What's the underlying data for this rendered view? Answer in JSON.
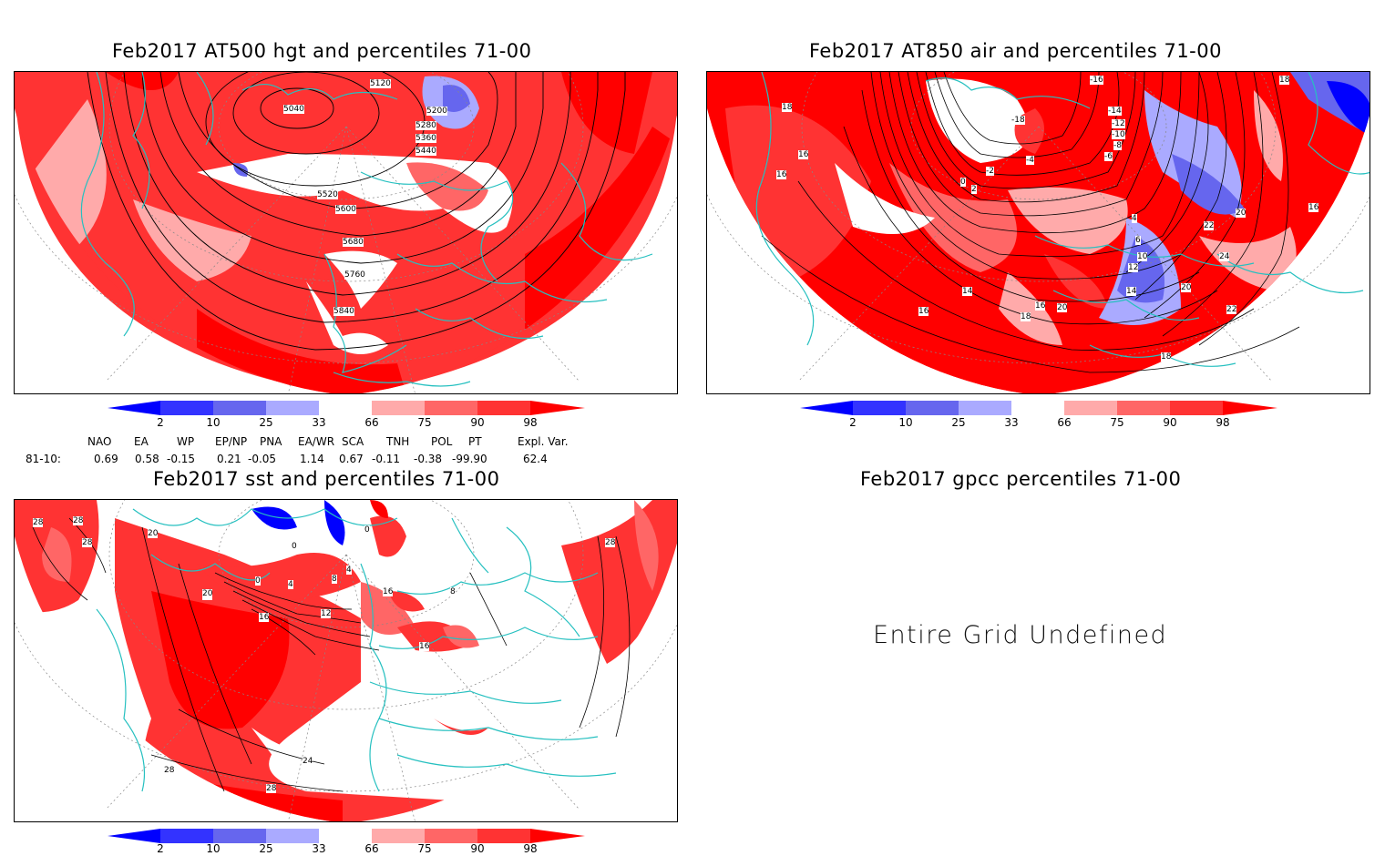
{
  "panels": {
    "hgt": {
      "title": "Feb2017 AT500 hgt and percentiles 71-00",
      "contour_labels": [
        "5120",
        "5040",
        "5200",
        "5280",
        "5360",
        "5440",
        "5520",
        "5600",
        "5680",
        "5760",
        "5840"
      ]
    },
    "air": {
      "title": "Feb2017 AT850 air and percentiles 71-00",
      "contour_labels": [
        "18",
        "16",
        "18",
        "16",
        "-16",
        "-18",
        "-14",
        "-12",
        "-10",
        "-8",
        "-6",
        "-4",
        "-2",
        "0",
        "2",
        "4",
        "6",
        "10",
        "12",
        "14",
        "16",
        "18",
        "20",
        "22",
        "24",
        "22",
        "20",
        "18",
        "16",
        "20",
        "14",
        "16",
        "-4",
        "-2",
        "-6",
        "-4",
        "-2",
        "2"
      ]
    },
    "sst": {
      "title": "Feb2017 sst and percentiles 71-00",
      "contour_labels": [
        "28",
        "28",
        "28",
        "20",
        "20",
        "0",
        "0",
        "0",
        "4",
        "8",
        "4",
        "12",
        "16",
        "16",
        "20",
        "24",
        "28",
        "28",
        "16",
        "8",
        "28"
      ]
    },
    "gpcc": {
      "title": "Feb2017 gpcc percentiles 71-00",
      "message": "Entire Grid Undefined"
    }
  },
  "colorbar": {
    "labels": [
      "2",
      "10",
      "25",
      "33",
      "66",
      "75",
      "90",
      "98"
    ],
    "colors": {
      "lt2": "#0000ff",
      "c2_10": "#3333ff",
      "c10_25": "#6666ee",
      "c25_33": "#aaaaff",
      "mid": "#ffffff",
      "c66_75": "#ffaaaa",
      "c75_90": "#ff6666",
      "c90_98": "#ff3333",
      "gt98": "#ff0000"
    }
  },
  "indices": {
    "headers": [
      "NAO",
      "EA",
      "WP",
      "EP/NP",
      "PNA",
      "EA/WR",
      "SCA",
      "TNH",
      "POL",
      "PT",
      "Expl. Var."
    ],
    "row_label": "81-10:",
    "values": [
      "0.69",
      "0.58",
      "-0.15",
      "0.21",
      "-0.05",
      "1.14",
      "0.67",
      "-0.11",
      "-0.38",
      "-99.90",
      "62.4"
    ]
  },
  "map_colors": {
    "coast": "#26c0c0",
    "contour": "#000000",
    "grid": "#888888"
  }
}
